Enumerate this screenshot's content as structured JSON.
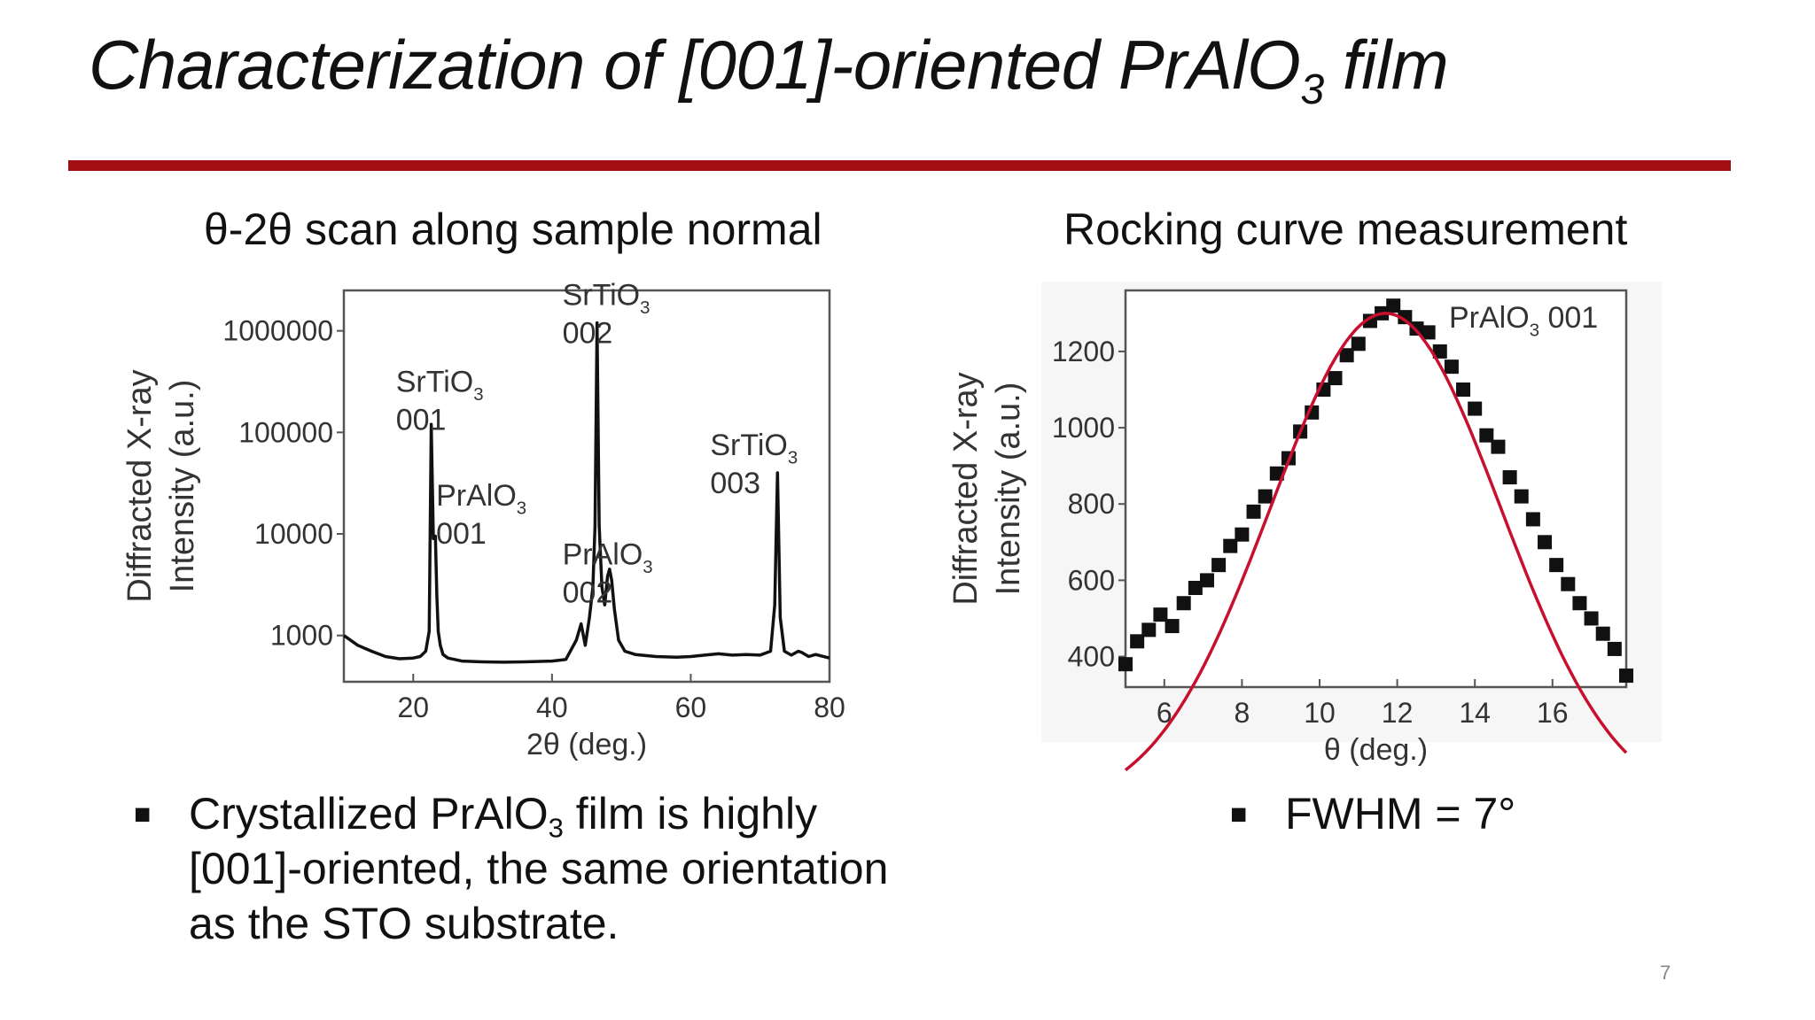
{
  "slide": {
    "title_prefix": "Characterization of [001]-oriented PrAlO",
    "title_sub": "3",
    "title_suffix": " film",
    "accent_color": "#a10e14",
    "page_number": "7"
  },
  "left_panel": {
    "title": "θ-2θ scan along sample normal",
    "bullet": {
      "prefix": "Crystallized PrAlO",
      "sub": "3",
      "suffix": " film is highly [001]-oriented, the same orientation as the STO substrate."
    }
  },
  "right_panel": {
    "title": "Rocking curve measurement",
    "bullet": {
      "text": "FWHM = 7°"
    }
  },
  "chart_data": [
    {
      "type": "line",
      "xlabel": "2θ (deg.)",
      "ylabel": "Diffracted X-ray Intensity (a.u.)",
      "ylabel_lines": [
        "Diffracted X-ray",
        "Intensity (a.u.)"
      ],
      "xlim": [
        10,
        80
      ],
      "ylim": [
        350,
        2500000
      ],
      "log_y": true,
      "x_ticks": [
        20,
        40,
        60,
        80
      ],
      "y_ticks": [
        1000,
        10000,
        100000,
        1000000
      ],
      "y_tick_labels": [
        "1000",
        "10000",
        "100000",
        "1000000"
      ],
      "series": [
        {
          "color": "#111111",
          "x": [
            10,
            12,
            14,
            16,
            18,
            20,
            21,
            21.8,
            22.3,
            22.6,
            22.9,
            23.2,
            23.4,
            23.6,
            23.9,
            24.3,
            25,
            27,
            30,
            33,
            36,
            40,
            42,
            43.5,
            44.2,
            44.8,
            45.4,
            45.9,
            46.2,
            46.5,
            46.8,
            47.2,
            47.6,
            48.0,
            48.3,
            48.6,
            49.0,
            49.6,
            50.5,
            52,
            55,
            58,
            60,
            62,
            64,
            66,
            68,
            70,
            71.5,
            72.1,
            72.5,
            72.9,
            73.5,
            74.5,
            75.5,
            76,
            77,
            78,
            80
          ],
          "y": [
            1000,
            800,
            700,
            620,
            590,
            600,
            620,
            700,
            1100,
            120000,
            9000,
            9500,
            2500,
            1100,
            800,
            650,
            600,
            560,
            550,
            545,
            550,
            560,
            580,
            900,
            1300,
            800,
            1500,
            3000,
            12000,
            1200000,
            12000,
            3000,
            2000,
            3800,
            4500,
            3500,
            1800,
            900,
            700,
            650,
            620,
            610,
            620,
            640,
            660,
            640,
            650,
            640,
            700,
            2000,
            40000,
            1500,
            700,
            640,
            700,
            680,
            620,
            650,
            600
          ]
        }
      ],
      "annotations": [
        {
          "main": "SrTiO",
          "sub": "3",
          "line2": "001"
        },
        {
          "main": "PrAlO",
          "sub": "3",
          "line2": "001"
        },
        {
          "main": "SrTiO",
          "sub": "3",
          "line2": "002"
        },
        {
          "main": "PrAlO",
          "sub": "3",
          "line2": "002"
        },
        {
          "main": "SrTiO",
          "sub": "3",
          "line2": "003"
        }
      ]
    },
    {
      "type": "scatter",
      "xlabel": "θ (deg.)",
      "ylabel": "Diffracted X-ray Intensity (a.u.)",
      "ylabel_lines": [
        "Diffracted X-ray",
        "Intensity (a.u.)"
      ],
      "xlim": [
        5,
        17.9
      ],
      "ylim": [
        320,
        1360
      ],
      "x_ticks": [
        6,
        8,
        10,
        12,
        14,
        16
      ],
      "y_ticks": [
        400,
        600,
        800,
        1000,
        1200
      ],
      "legend": {
        "main": "PrAlO",
        "sub": "3",
        "suffix": " 001",
        "position": "top-right"
      },
      "fit": {
        "type": "gaussian",
        "color": "#c8102e",
        "center": 11.7,
        "fwhm": 7,
        "peak": 1300,
        "baseline": 0
      },
      "series": [
        {
          "color": "#111111",
          "x": [
            5.0,
            5.3,
            5.6,
            5.9,
            6.2,
            6.5,
            6.8,
            7.1,
            7.4,
            7.7,
            8.0,
            8.3,
            8.6,
            8.9,
            9.2,
            9.5,
            9.8,
            10.1,
            10.4,
            10.7,
            11.0,
            11.3,
            11.6,
            11.9,
            12.2,
            12.5,
            12.8,
            13.1,
            13.4,
            13.7,
            14.0,
            14.3,
            14.6,
            14.9,
            15.2,
            15.5,
            15.8,
            16.1,
            16.4,
            16.7,
            17.0,
            17.3,
            17.6,
            17.9
          ],
          "y": [
            380,
            440,
            470,
            510,
            480,
            540,
            580,
            600,
            640,
            690,
            720,
            780,
            820,
            880,
            920,
            990,
            1040,
            1100,
            1130,
            1190,
            1220,
            1280,
            1300,
            1320,
            1290,
            1260,
            1250,
            1200,
            1160,
            1100,
            1050,
            980,
            950,
            870,
            820,
            760,
            700,
            640,
            590,
            540,
            500,
            460,
            420,
            350
          ]
        }
      ]
    }
  ]
}
